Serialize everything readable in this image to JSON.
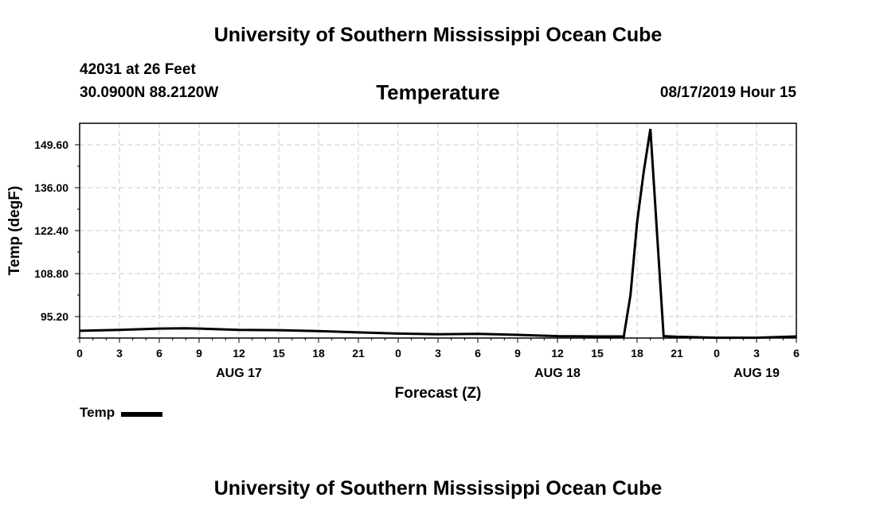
{
  "header": {
    "title": "University of Southern Mississippi Ocean Cube",
    "station": "42031 at 26 Feet",
    "coords": "30.0900N 88.2120W",
    "chart_title": "Temperature",
    "run_time": "08/17/2019 Hour 15"
  },
  "footer": {
    "title": "University of Southern Mississippi Ocean Cube"
  },
  "chart_data": {
    "type": "line",
    "title": "Temperature",
    "xlabel": "Forecast (Z)",
    "ylabel": "Temp (degF)",
    "x_range": [
      0,
      54
    ],
    "ylim": [
      88.4,
      156.4
    ],
    "x_ticks": [
      0,
      3,
      6,
      9,
      12,
      15,
      18,
      21,
      24,
      27,
      30,
      33,
      36,
      39,
      42,
      45,
      48,
      51,
      54
    ],
    "x_tick_labels": [
      "0",
      "3",
      "6",
      "9",
      "12",
      "15",
      "18",
      "21",
      "0",
      "3",
      "6",
      "9",
      "12",
      "15",
      "18",
      "21",
      "0",
      "3",
      "6"
    ],
    "y_ticks": [
      95.2,
      108.8,
      122.4,
      136.0,
      149.6
    ],
    "y_tick_labels": [
      "95.20",
      "108.80",
      "122.40",
      "136.00",
      "149.60"
    ],
    "date_labels": [
      {
        "x": 12,
        "label": "AUG 17"
      },
      {
        "x": 36,
        "label": "AUG 18"
      },
      {
        "x": 51,
        "label": "AUG 19"
      }
    ],
    "grid": true,
    "legend_position": "bottom-left",
    "series": [
      {
        "name": "Temp",
        "color": "#000000",
        "x": [
          0,
          3,
          6,
          8,
          9,
          12,
          15,
          18,
          21,
          24,
          27,
          30,
          33,
          36,
          39,
          41,
          41.5,
          42,
          42.5,
          43,
          44,
          45,
          48,
          51,
          54
        ],
        "y": [
          90.7,
          91.0,
          91.4,
          91.5,
          91.4,
          91.0,
          90.9,
          90.6,
          90.2,
          89.8,
          89.6,
          89.7,
          89.4,
          89.0,
          88.9,
          88.9,
          102.0,
          125.0,
          141.0,
          154.6,
          89.0,
          88.8,
          88.5,
          88.5,
          88.9
        ]
      }
    ]
  },
  "legend": {
    "label": "Temp"
  }
}
